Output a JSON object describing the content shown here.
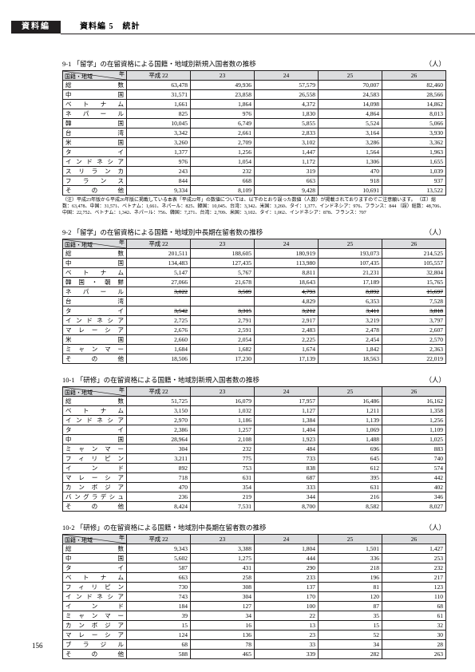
{
  "header": {
    "tab": "資料編",
    "title": "資料編 5　統計"
  },
  "unit": "（人）",
  "pagenum": "156",
  "year_cols": [
    "平成 22",
    "23",
    "24",
    "25",
    "26"
  ],
  "diag": {
    "top": "年",
    "bottom": "国籍・地域"
  },
  "sections": [
    {
      "title": "9-1 「留学」の在留資格による国籍・地域別新規入国者数の推移",
      "strike_rows": [],
      "rows": [
        {
          "label": "総　数",
          "v": [
            "63,478",
            "49,936",
            "57,579",
            "70,007",
            "82,460"
          ]
        },
        {
          "label": "中　国",
          "v": [
            "31,571",
            "23,858",
            "26,558",
            "24,583",
            "28,566"
          ]
        },
        {
          "label": "ベトナム",
          "v": [
            "1,661",
            "1,864",
            "4,372",
            "14,098",
            "14,862"
          ]
        },
        {
          "label": "ネパール",
          "v": [
            "825",
            "976",
            "1,830",
            "4,864",
            "8,013"
          ]
        },
        {
          "label": "韓　国",
          "v": [
            "10,045",
            "6,749",
            "5,855",
            "5,524",
            "5,066"
          ]
        },
        {
          "label": "台　湾",
          "v": [
            "3,342",
            "2,661",
            "2,833",
            "3,164",
            "3,930"
          ]
        },
        {
          "label": "米　国",
          "v": [
            "3,260",
            "2,709",
            "3,102",
            "3,286",
            "3,362"
          ]
        },
        {
          "label": "タ　イ",
          "v": [
            "1,377",
            "1,256",
            "1,447",
            "1,564",
            "1,963"
          ]
        },
        {
          "label": "インドネシア",
          "v": [
            "976",
            "1,054",
            "1,172",
            "1,306",
            "1,655"
          ]
        },
        {
          "label": "スリランカ",
          "v": [
            "243",
            "232",
            "319",
            "470",
            "1,039"
          ]
        },
        {
          "label": "フランス",
          "v": [
            "844",
            "668",
            "663",
            "918",
            "937"
          ]
        },
        {
          "label": "その他",
          "v": [
            "9,334",
            "8,109",
            "9,428",
            "10,691",
            "13,522"
          ]
        }
      ],
      "footnote": "（注）平成23年版から平成26年版に掲載している本表「平成22年」の数値については、以下のとおり誤った数値（人数）が掲載されておりますのでご注意願います。\n（正）総数：63,478、中国：31,571、ベトナム：1,661、ネパール：825、韓国：10,045、台湾：3,342、米国：3,260、タイ：1,377、インドネシア：976、フランス：844\n（誤）総数：48,706、中国：22,752、ベトナム：1,342、ネパール：756、韓国：7,271、台湾：2,709、米国：3,102、タイ：1,062、インドネシア：878、フランス：707"
    },
    {
      "title": "9-2 「留学」の在留資格による国籍・地域別中長期在留者数の推移",
      "strike_rows": [
        4,
        6
      ],
      "rows": [
        {
          "label": "総　数",
          "v": [
            "201,511",
            "188,605",
            "180,919",
            "193,073",
            "214,525"
          ]
        },
        {
          "label": "中　国",
          "v": [
            "134,483",
            "127,435",
            "113,980",
            "107,435",
            "105,557"
          ]
        },
        {
          "label": "ベトナム",
          "v": [
            "5,147",
            "5,767",
            "8,811",
            "21,231",
            "32,804"
          ]
        },
        {
          "label": "韓国・朝鮮",
          "v": [
            "27,066",
            "21,678",
            "18,643",
            "17,189",
            "15,765"
          ]
        },
        {
          "label": "ネパール",
          "v": [
            "3,022",
            "3,589",
            "4,793",
            "8,892",
            "15,697"
          ]
        },
        {
          "label": "台　湾",
          "v": [
            "",
            "",
            "4,829",
            "6,353",
            "7,528"
          ]
        },
        {
          "label": "タ　イ",
          "v": [
            "3,542",
            "3,315",
            "3,212",
            "3,411",
            "3,818"
          ]
        },
        {
          "label": "インドネシア",
          "v": [
            "2,725",
            "2,791",
            "2,917",
            "3,219",
            "3,797"
          ]
        },
        {
          "label": "マレーシア",
          "v": [
            "2,676",
            "2,591",
            "2,483",
            "2,478",
            "2,607"
          ]
        },
        {
          "label": "米　国",
          "v": [
            "2,660",
            "2,054",
            "2,225",
            "2,454",
            "2,570"
          ]
        },
        {
          "label": "ミャンマー",
          "v": [
            "1,684",
            "1,682",
            "1,674",
            "1,842",
            "2,363"
          ]
        },
        {
          "label": "その他",
          "v": [
            "18,506",
            "17,230",
            "17,139",
            "18,563",
            "22,019"
          ]
        }
      ]
    },
    {
      "title": "10-1 「研修」の在留資格による国籍・地域別新規入国者数の推移",
      "strike_rows": [],
      "rows": [
        {
          "label": "総　数",
          "v": [
            "51,725",
            "16,079",
            "17,957",
            "16,486",
            "16,162"
          ]
        },
        {
          "label": "ベトナム",
          "v": [
            "3,150",
            "1,032",
            "1,127",
            "1,211",
            "1,358"
          ]
        },
        {
          "label": "インドネシア",
          "v": [
            "2,970",
            "1,186",
            "1,384",
            "1,139",
            "1,256"
          ]
        },
        {
          "label": "タ　イ",
          "v": [
            "2,386",
            "1,257",
            "1,404",
            "1,069",
            "1,109"
          ]
        },
        {
          "label": "中　国",
          "v": [
            "28,964",
            "2,108",
            "1,923",
            "1,488",
            "1,025"
          ]
        },
        {
          "label": "ミャンマー",
          "v": [
            "304",
            "232",
            "484",
            "696",
            "883"
          ]
        },
        {
          "label": "フィリピン",
          "v": [
            "3,211",
            "775",
            "733",
            "645",
            "740"
          ]
        },
        {
          "label": "インド",
          "v": [
            "892",
            "753",
            "838",
            "612",
            "574"
          ]
        },
        {
          "label": "マレーシア",
          "v": [
            "718",
            "631",
            "687",
            "395",
            "442"
          ]
        },
        {
          "label": "カンボジア",
          "v": [
            "470",
            "354",
            "333",
            "631",
            "402"
          ]
        },
        {
          "label": "バングラデシュ",
          "v": [
            "236",
            "219",
            "344",
            "216",
            "346"
          ]
        },
        {
          "label": "その他",
          "v": [
            "8,424",
            "7,531",
            "8,700",
            "8,582",
            "8,027"
          ]
        }
      ]
    },
    {
      "title": "10-2 「研修」の在留資格による国籍・地域別中長期在留者数の推移",
      "strike_rows": [],
      "rows": [
        {
          "label": "総　数",
          "v": [
            "9,343",
            "3,388",
            "1,804",
            "1,501",
            "1,427"
          ]
        },
        {
          "label": "中　国",
          "v": [
            "5,602",
            "1,275",
            "444",
            "336",
            "253"
          ]
        },
        {
          "label": "タ　イ",
          "v": [
            "587",
            "431",
            "290",
            "218",
            "232"
          ]
        },
        {
          "label": "ベトナム",
          "v": [
            "663",
            "258",
            "233",
            "196",
            "217"
          ]
        },
        {
          "label": "フィリピン",
          "v": [
            "730",
            "308",
            "137",
            "81",
            "123"
          ]
        },
        {
          "label": "インドネシア",
          "v": [
            "743",
            "304",
            "170",
            "120",
            "110"
          ]
        },
        {
          "label": "インド",
          "v": [
            "184",
            "127",
            "100",
            "87",
            "68"
          ]
        },
        {
          "label": "ミャンマー",
          "v": [
            "39",
            "34",
            "22",
            "35",
            "61"
          ]
        },
        {
          "label": "カンボジア",
          "v": [
            "15",
            "16",
            "13",
            "15",
            "32"
          ]
        },
        {
          "label": "マレーシア",
          "v": [
            "124",
            "136",
            "23",
            "52",
            "30"
          ]
        },
        {
          "label": "ブラジル",
          "v": [
            "68",
            "78",
            "33",
            "34",
            "28"
          ]
        },
        {
          "label": "その他",
          "v": [
            "588",
            "465",
            "339",
            "282",
            "263"
          ]
        }
      ]
    }
  ]
}
